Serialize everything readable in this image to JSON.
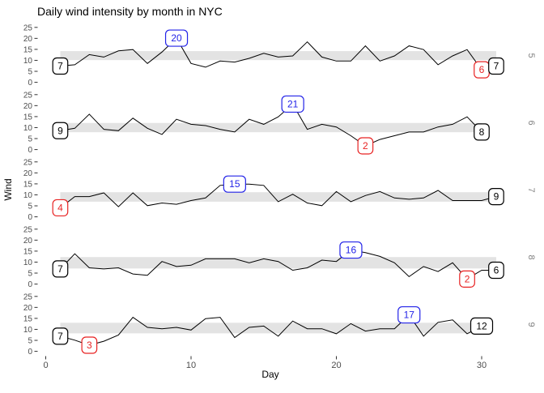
{
  "chart_data": {
    "type": "line",
    "title": "Daily wind intensity by month in NYC",
    "xlabel": "Day",
    "ylabel": "Wind",
    "facet_label_side": "right",
    "legend": "none",
    "grid": "off",
    "x_ticks": [
      0,
      10,
      20,
      30
    ],
    "y_ticks": [
      0,
      5,
      10,
      15,
      20,
      25
    ],
    "xlim": [
      0,
      31
    ],
    "panel_value_range": [
      -2,
      26.4
    ],
    "colors": {
      "line": "#000000",
      "band": "#e3e3e3",
      "axis_text": "#4d4d4d",
      "tick_mark": "#333333",
      "strip_text": "#808080",
      "label_fill": "#ffffff",
      "annotation": {
        "first": "#000000",
        "last": "#000000",
        "max": "#2323e8",
        "min": "#e82323"
      }
    },
    "facets": [
      {
        "month": "5",
        "band": [
          10.1,
          14.2
        ],
        "values": [
          7.4,
          8,
          12.6,
          11.5,
          14.3,
          14.9,
          8.6,
          13.8,
          20.1,
          8.6,
          6.9,
          9.7,
          9.2,
          10.9,
          13.2,
          11.5,
          12,
          18.4,
          11.5,
          9.7,
          9.7,
          16.6,
          9.7,
          12,
          16.6,
          14.9,
          8,
          12,
          14.9,
          5.7,
          7.4
        ],
        "annotations": [
          {
            "kind": "first",
            "day": 1,
            "label": "7"
          },
          {
            "kind": "max",
            "day": 9,
            "label": "20"
          },
          {
            "kind": "min",
            "day": 30,
            "label": "6"
          },
          {
            "kind": "last",
            "day": 31,
            "label": "7"
          }
        ]
      },
      {
        "month": "6",
        "band": [
          7.9,
          12.1
        ],
        "values": [
          8.6,
          9.7,
          16.1,
          9.2,
          8.6,
          14.3,
          9.7,
          6.9,
          13.8,
          11.5,
          10.9,
          9.2,
          8,
          13.8,
          11.5,
          14.9,
          20.7,
          9.2,
          11.5,
          10.3,
          6.3,
          1.7,
          4.6,
          6.3,
          8,
          8,
          10.3,
          11.5,
          14.9,
          8
        ],
        "annotations": [
          {
            "kind": "first",
            "day": 1,
            "label": "9"
          },
          {
            "kind": "max",
            "day": 17,
            "label": "21"
          },
          {
            "kind": "min",
            "day": 22,
            "label": "2"
          },
          {
            "kind": "last",
            "day": 30,
            "label": "8"
          }
        ]
      },
      {
        "month": "7",
        "band": [
          6.9,
          11.2
        ],
        "values": [
          4.1,
          9.2,
          9.2,
          10.9,
          4.6,
          10.9,
          5.1,
          6.3,
          5.7,
          7.4,
          8.6,
          14.3,
          14.9,
          14.9,
          14.3,
          6.9,
          10.3,
          6.3,
          5.1,
          11.5,
          6.9,
          9.7,
          11.5,
          8.6,
          8,
          8.6,
          12,
          7.4,
          7.4,
          7.4,
          9.2
        ],
        "annotations": [
          {
            "kind": "min",
            "day": 1,
            "label": "4"
          },
          {
            "kind": "max",
            "day": 13,
            "label": "15"
          },
          {
            "kind": "last",
            "day": 31,
            "label": "9"
          }
        ]
      },
      {
        "month": "8",
        "band": [
          7.1,
          12.3
        ],
        "values": [
          6.9,
          13.8,
          7.4,
          6.9,
          7.4,
          4.6,
          4,
          10.3,
          8,
          8.6,
          11.5,
          11.5,
          11.5,
          9.7,
          11.5,
          10.3,
          6.3,
          7.4,
          10.9,
          10.3,
          15.5,
          14.3,
          12.6,
          9.7,
          3.4,
          8,
          5.7,
          9.7,
          2.3,
          6.3,
          6.3
        ],
        "annotations": [
          {
            "kind": "first",
            "day": 1,
            "label": "7"
          },
          {
            "kind": "max",
            "day": 21,
            "label": "16"
          },
          {
            "kind": "min",
            "day": 29,
            "label": "2"
          },
          {
            "kind": "last",
            "day": 31,
            "label": "6"
          }
        ]
      },
      {
        "month": "9",
        "band": [
          8.2,
          13.0
        ],
        "values": [
          6.9,
          5.1,
          2.8,
          4.6,
          7.4,
          15.5,
          10.9,
          10.3,
          10.9,
          9.7,
          14.9,
          15.5,
          6.3,
          10.9,
          11.5,
          6.9,
          13.8,
          10.3,
          10.3,
          8,
          12.6,
          9.2,
          10.3,
          10.3,
          16.6,
          6.9,
          13.2,
          14.3,
          8,
          11.5
        ],
        "annotations": [
          {
            "kind": "first",
            "day": 1,
            "label": "7"
          },
          {
            "kind": "min",
            "day": 3,
            "label": "3"
          },
          {
            "kind": "max",
            "day": 25,
            "label": "17"
          },
          {
            "kind": "last",
            "day": 30,
            "label": "12"
          }
        ]
      }
    ]
  }
}
